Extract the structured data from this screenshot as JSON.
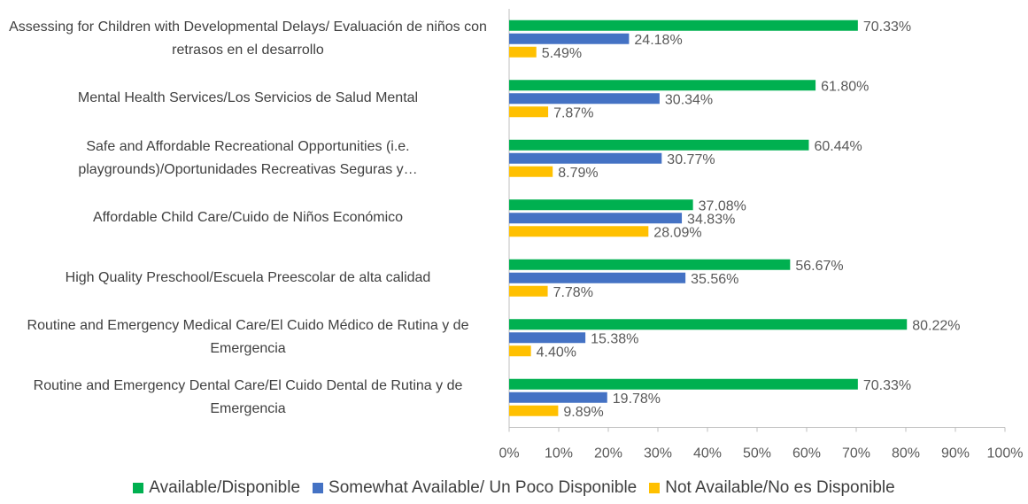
{
  "chart_data": {
    "type": "hbar",
    "categories": [
      "Assessing for Children with Developmental Delays/ Evaluación de niños con retrasos en el desarrollo",
      "Mental Health Services/Los Servicios de Salud Mental",
      "Safe and Affordable Recreational Opportunities (i.e. playgrounds)/Oportunidades Recreativas Seguras y…",
      "Affordable Child Care/Cuido de Niños Económico",
      "High Quality Preschool/Escuela Preescolar de alta calidad",
      "Routine and Emergency Medical Care/El Cuido Médico de Rutina y de Emergencia",
      "Routine and Emergency Dental Care/El Cuido Dental de Rutina y de Emergencia"
    ],
    "series": [
      {
        "name": "Available/Disponible",
        "color": "#00b050",
        "values": [
          70.33,
          61.8,
          60.44,
          37.08,
          56.67,
          80.22,
          70.33
        ],
        "value_labels": [
          "70.33%",
          "61.80%",
          "60.44%",
          "37.08%",
          "56.67%",
          "80.22%",
          "70.33%"
        ]
      },
      {
        "name": "Somewhat Available/ Un Poco Disponible",
        "color": "#4472c4",
        "values": [
          24.18,
          30.34,
          30.77,
          34.83,
          35.56,
          15.38,
          19.78
        ],
        "value_labels": [
          "24.18%",
          "30.34%",
          "30.77%",
          "34.83%",
          "35.56%",
          "15.38%",
          "19.78%"
        ]
      },
      {
        "name": "Not Available/No es Disponible",
        "color": "#ffc000",
        "values": [
          5.49,
          7.87,
          8.79,
          28.09,
          7.78,
          4.4,
          9.89
        ],
        "value_labels": [
          "5.49%",
          "7.87%",
          "8.79%",
          "28.09%",
          "7.78%",
          "4.40%",
          "9.89%"
        ]
      }
    ],
    "xlim": [
      0,
      100
    ],
    "xticks": [
      {
        "value": 0,
        "label": "0%"
      },
      {
        "value": 10,
        "label": "10%"
      },
      {
        "value": 20,
        "label": "20%"
      },
      {
        "value": 30,
        "label": "30%"
      },
      {
        "value": 40,
        "label": "40%"
      },
      {
        "value": 50,
        "label": "50%"
      },
      {
        "value": 60,
        "label": "60%"
      },
      {
        "value": 70,
        "label": "70%"
      },
      {
        "value": 80,
        "label": "80%"
      },
      {
        "value": 90,
        "label": "90%"
      },
      {
        "value": 100,
        "label": "100%"
      }
    ],
    "legend": "bottom"
  }
}
